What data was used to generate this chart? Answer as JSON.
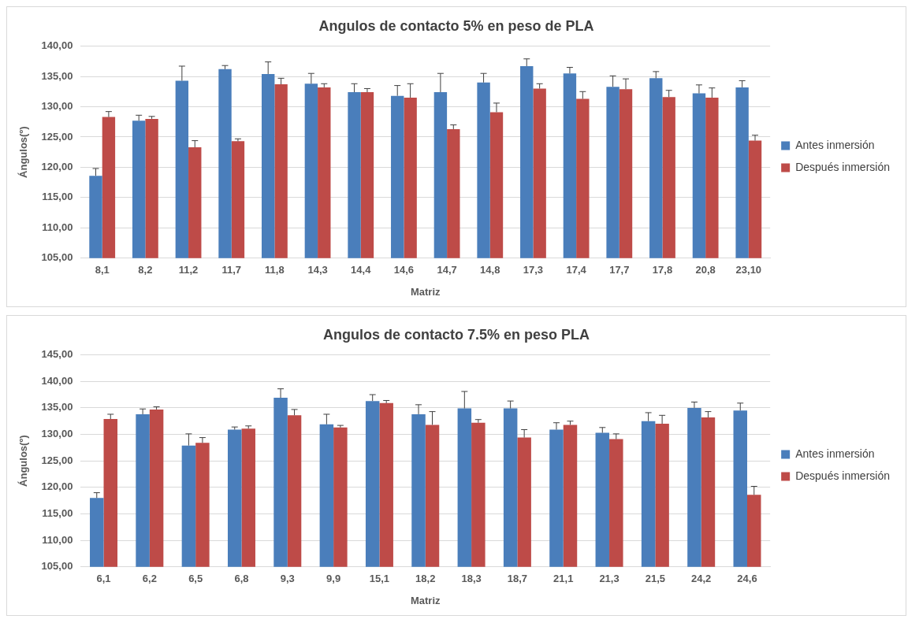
{
  "chart_data": [
    {
      "type": "bar",
      "title": "Angulos de contacto 5% en peso de PLA",
      "xlabel": "Matriz",
      "ylabel": "Ángulos(º)",
      "categories": [
        "8,1",
        "8,2",
        "11,2",
        "11,7",
        "11,8",
        "14,3",
        "14,4",
        "14,6",
        "14,7",
        "14,8",
        "17,3",
        "17,4",
        "17,7",
        "17,8",
        "20,8",
        "23,10"
      ],
      "series": [
        {
          "name": "Antes inmersión",
          "color": "#4a7ebb",
          "values": [
            118.6,
            127.7,
            134.3,
            136.2,
            135.4,
            133.8,
            132.4,
            131.8,
            132.4,
            134.0,
            136.7,
            135.5,
            133.3,
            134.7,
            132.2,
            133.2
          ],
          "errors": [
            [
              118.6,
              119.8
            ],
            [
              127.7,
              128.6
            ],
            [
              134.3,
              136.7
            ],
            [
              136.2,
              136.8
            ],
            [
              135.4,
              137.4
            ],
            [
              133.8,
              135.5
            ],
            [
              132.4,
              133.8
            ],
            [
              131.8,
              133.5
            ],
            [
              132.4,
              135.5
            ],
            [
              134.0,
              135.5
            ],
            [
              136.7,
              137.9
            ],
            [
              135.5,
              136.5
            ],
            [
              133.3,
              135.1
            ],
            [
              134.7,
              135.8
            ],
            [
              132.2,
              133.6
            ],
            [
              133.2,
              134.3
            ]
          ]
        },
        {
          "name": "Después inmersión",
          "color": "#be4b48",
          "values": [
            128.3,
            128.0,
            123.3,
            124.3,
            133.7,
            133.2,
            132.4,
            131.5,
            126.3,
            129.1,
            133.0,
            131.3,
            132.9,
            131.6,
            131.5,
            124.4
          ],
          "errors": [
            [
              128.3,
              129.2
            ],
            [
              128.0,
              128.4
            ],
            [
              123.3,
              124.4
            ],
            [
              124.3,
              124.7
            ],
            [
              133.7,
              134.7
            ],
            [
              133.2,
              133.8
            ],
            [
              132.4,
              133.0
            ],
            [
              131.5,
              133.8
            ],
            [
              126.3,
              127.0
            ],
            [
              129.1,
              130.6
            ],
            [
              133.0,
              133.8
            ],
            [
              131.3,
              132.5
            ],
            [
              132.9,
              134.6
            ],
            [
              131.6,
              132.7
            ],
            [
              131.5,
              133.1
            ],
            [
              124.4,
              125.3
            ]
          ]
        }
      ],
      "ylim": [
        105,
        140
      ],
      "yticks": [
        {
          "value": 105,
          "label": "105,00"
        },
        {
          "value": 110,
          "label": "110,00"
        },
        {
          "value": 115,
          "label": "115,00"
        },
        {
          "value": 120,
          "label": "120,00"
        },
        {
          "value": 125,
          "label": "125,00"
        },
        {
          "value": 130,
          "label": "130,00"
        },
        {
          "value": 135,
          "label": "135,00"
        },
        {
          "value": 140,
          "label": "140,00"
        }
      ],
      "grid": "y",
      "legend": "right"
    },
    {
      "type": "bar",
      "title": "Angulos de contacto 7.5% en peso PLA",
      "xlabel": "Matriz",
      "ylabel": "Ángulos(º)",
      "categories": [
        "6,1",
        "6,2",
        "6,5",
        "6,8",
        "9,3",
        "9,9",
        "15,1",
        "18,2",
        "18,3",
        "18,7",
        "21,1",
        "21,3",
        "21,5",
        "24,2",
        "24,6"
      ],
      "series": [
        {
          "name": "Antes inmersión",
          "color": "#4a7ebb",
          "values": [
            118.0,
            133.8,
            127.9,
            130.9,
            136.9,
            131.9,
            136.3,
            133.8,
            134.9,
            134.9,
            130.9,
            130.3,
            132.5,
            135.0,
            134.5
          ],
          "errors": [
            [
              118.0,
              119.0
            ],
            [
              133.8,
              134.8
            ],
            [
              127.9,
              130.1
            ],
            [
              130.9,
              131.4
            ],
            [
              136.9,
              138.6
            ],
            [
              131.9,
              133.8
            ],
            [
              136.3,
              137.5
            ],
            [
              133.8,
              135.6
            ],
            [
              134.9,
              138.1
            ],
            [
              134.9,
              136.3
            ],
            [
              130.9,
              132.2
            ],
            [
              130.3,
              131.3
            ],
            [
              132.5,
              134.1
            ],
            [
              135.0,
              136.1
            ],
            [
              134.5,
              135.9
            ]
          ]
        },
        {
          "name": "Después inmersión",
          "color": "#be4b48",
          "values": [
            132.9,
            134.7,
            128.4,
            131.1,
            133.6,
            131.3,
            135.9,
            131.8,
            132.2,
            129.4,
            131.8,
            129.1,
            132.0,
            133.2,
            118.6
          ],
          "errors": [
            [
              132.9,
              133.8
            ],
            [
              134.7,
              135.2
            ],
            [
              128.4,
              129.4
            ],
            [
              131.1,
              131.6
            ],
            [
              133.6,
              134.7
            ],
            [
              131.3,
              131.7
            ],
            [
              135.9,
              136.4
            ],
            [
              131.8,
              134.3
            ],
            [
              132.2,
              132.8
            ],
            [
              129.4,
              130.9
            ],
            [
              131.8,
              132.5
            ],
            [
              129.1,
              130.1
            ],
            [
              132.0,
              133.6
            ],
            [
              133.2,
              134.3
            ],
            [
              118.6,
              120.2
            ]
          ]
        }
      ],
      "ylim": [
        105,
        145
      ],
      "yticks": [
        {
          "value": 105,
          "label": "105,00"
        },
        {
          "value": 110,
          "label": "110,00"
        },
        {
          "value": 115,
          "label": "115,00"
        },
        {
          "value": 120,
          "label": "120,00"
        },
        {
          "value": 125,
          "label": "125,00"
        },
        {
          "value": 130,
          "label": "130,00"
        },
        {
          "value": 135,
          "label": "135,00"
        },
        {
          "value": 140,
          "label": "140,00"
        },
        {
          "value": 145,
          "label": "145,00"
        }
      ],
      "grid": "y",
      "legend": "right"
    }
  ]
}
